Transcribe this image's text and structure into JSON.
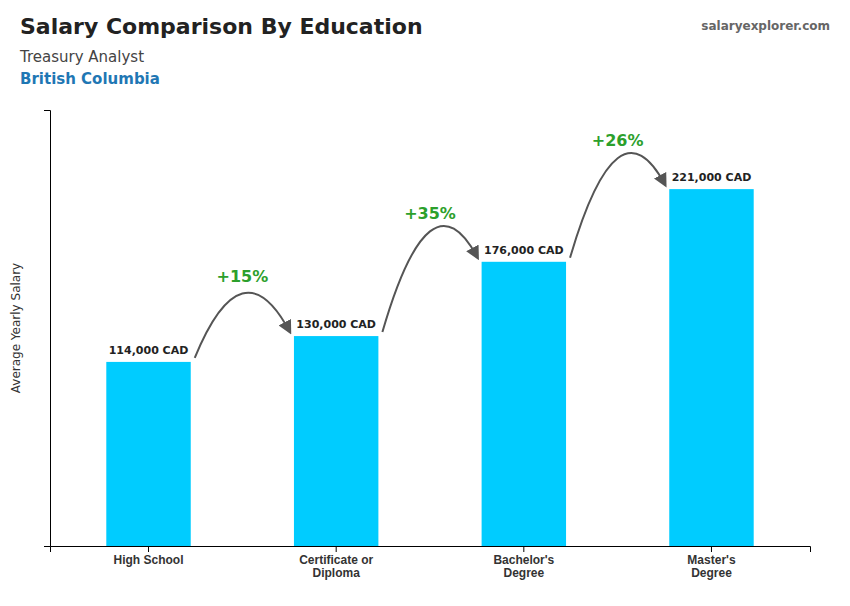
{
  "chart_data": {
    "type": "bar",
    "title": "Salary Comparison By Education",
    "subtitle": [
      "Treasury Analyst",
      "British Columbia"
    ],
    "source": "salaryexplorer.com",
    "ylabel": "Average Yearly Salary",
    "categories": [
      "High School",
      "Certificate or\nDiploma",
      "Bachelor's\nDegree",
      "Master's\nDegree"
    ],
    "values": [
      114000,
      130000,
      176000,
      221000
    ],
    "value_labels": [
      "114,000 CAD",
      "130,000 CAD",
      "176,000 CAD",
      "221,000 CAD"
    ],
    "data_labels": true,
    "annotations": [
      "+15%",
      "+35%",
      "+26%"
    ],
    "color": "#00ccff",
    "ylim": [
      0,
      270000
    ],
    "yticks": [],
    "tick_labels": "x",
    "grid": false
  }
}
